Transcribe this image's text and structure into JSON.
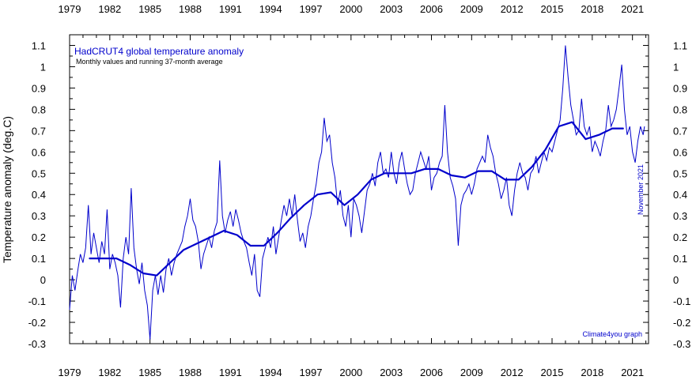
{
  "chart_data": {
    "type": "line",
    "title": "HadCRUT4 global temperature anomaly",
    "subtitle": "Monthly values and running 37-month average",
    "ylabel": "Temperature anomaly (deg.C)",
    "xlabel": "",
    "xlim": [
      1979,
      2022.2
    ],
    "ylim": [
      -0.3,
      1.15
    ],
    "x_tick_labels": [
      "1979",
      "1982",
      "1985",
      "1988",
      "1991",
      "1994",
      "1997",
      "2000",
      "2003",
      "2006",
      "2009",
      "2012",
      "2015",
      "2018",
      "2021"
    ],
    "x_tick_values": [
      1979,
      1982,
      1985,
      1988,
      1991,
      1994,
      1997,
      2000,
      2003,
      2006,
      2009,
      2012,
      2015,
      2018,
      2021
    ],
    "y_tick_labels": [
      "-0.3",
      "-0.2",
      "-0.1",
      "0",
      "0.1",
      "0.2",
      "0.3",
      "0.4",
      "0.5",
      "0.6",
      "0.7",
      "0.8",
      "0.9",
      "1",
      "1.1"
    ],
    "y_tick_values": [
      -0.3,
      -0.2,
      -0.1,
      0,
      0.1,
      0.2,
      0.3,
      0.4,
      0.5,
      0.6,
      0.7,
      0.8,
      0.9,
      1.0,
      1.1
    ],
    "date_label": "November 2021",
    "credit": "Climate4you graph",
    "line_color": "#0000cc",
    "series": [
      {
        "name": "Monthly values",
        "values": [
          [
            1979.0,
            -0.14
          ],
          [
            1979.2,
            0.02
          ],
          [
            1979.4,
            -0.05
          ],
          [
            1979.6,
            0.04
          ],
          [
            1979.8,
            0.12
          ],
          [
            1980.0,
            0.08
          ],
          [
            1980.2,
            0.15
          ],
          [
            1980.4,
            0.35
          ],
          [
            1980.6,
            0.12
          ],
          [
            1980.8,
            0.22
          ],
          [
            1981.0,
            0.15
          ],
          [
            1981.2,
            0.08
          ],
          [
            1981.4,
            0.18
          ],
          [
            1981.6,
            0.12
          ],
          [
            1981.8,
            0.33
          ],
          [
            1982.0,
            0.05
          ],
          [
            1982.2,
            0.12
          ],
          [
            1982.4,
            0.08
          ],
          [
            1982.6,
            0.02
          ],
          [
            1982.8,
            -0.13
          ],
          [
            1983.0,
            0.1
          ],
          [
            1983.2,
            0.2
          ],
          [
            1983.4,
            0.12
          ],
          [
            1983.6,
            0.43
          ],
          [
            1983.8,
            0.15
          ],
          [
            1984.0,
            0.05
          ],
          [
            1984.2,
            -0.02
          ],
          [
            1984.4,
            0.08
          ],
          [
            1984.6,
            -0.05
          ],
          [
            1984.8,
            -0.12
          ],
          [
            1985.0,
            -0.28
          ],
          [
            1985.2,
            -0.05
          ],
          [
            1985.4,
            0.02
          ],
          [
            1985.6,
            -0.07
          ],
          [
            1985.8,
            0.02
          ],
          [
            1986.0,
            -0.06
          ],
          [
            1986.2,
            0.05
          ],
          [
            1986.4,
            0.1
          ],
          [
            1986.6,
            0.02
          ],
          [
            1986.8,
            0.08
          ],
          [
            1987.0,
            0.12
          ],
          [
            1987.2,
            0.15
          ],
          [
            1987.4,
            0.18
          ],
          [
            1987.6,
            0.25
          ],
          [
            1987.8,
            0.3
          ],
          [
            1988.0,
            0.38
          ],
          [
            1988.2,
            0.28
          ],
          [
            1988.4,
            0.25
          ],
          [
            1988.6,
            0.18
          ],
          [
            1988.8,
            0.05
          ],
          [
            1989.0,
            0.12
          ],
          [
            1989.2,
            0.16
          ],
          [
            1989.4,
            0.2
          ],
          [
            1989.6,
            0.15
          ],
          [
            1989.8,
            0.23
          ],
          [
            1990.0,
            0.27
          ],
          [
            1990.2,
            0.56
          ],
          [
            1990.4,
            0.3
          ],
          [
            1990.6,
            0.22
          ],
          [
            1990.8,
            0.28
          ],
          [
            1991.0,
            0.32
          ],
          [
            1991.2,
            0.25
          ],
          [
            1991.4,
            0.33
          ],
          [
            1991.6,
            0.28
          ],
          [
            1991.8,
            0.22
          ],
          [
            1992.0,
            0.18
          ],
          [
            1992.2,
            0.15
          ],
          [
            1992.4,
            0.08
          ],
          [
            1992.6,
            0.02
          ],
          [
            1992.8,
            0.12
          ],
          [
            1993.0,
            -0.05
          ],
          [
            1993.2,
            -0.08
          ],
          [
            1993.4,
            0.1
          ],
          [
            1993.6,
            0.15
          ],
          [
            1993.8,
            0.2
          ],
          [
            1994.0,
            0.15
          ],
          [
            1994.2,
            0.25
          ],
          [
            1994.4,
            0.12
          ],
          [
            1994.6,
            0.2
          ],
          [
            1994.8,
            0.28
          ],
          [
            1995.0,
            0.35
          ],
          [
            1995.2,
            0.3
          ],
          [
            1995.4,
            0.38
          ],
          [
            1995.6,
            0.3
          ],
          [
            1995.8,
            0.4
          ],
          [
            1996.0,
            0.28
          ],
          [
            1996.2,
            0.18
          ],
          [
            1996.4,
            0.22
          ],
          [
            1996.6,
            0.15
          ],
          [
            1996.8,
            0.25
          ],
          [
            1997.0,
            0.3
          ],
          [
            1997.2,
            0.38
          ],
          [
            1997.4,
            0.45
          ],
          [
            1997.6,
            0.55
          ],
          [
            1997.8,
            0.6
          ],
          [
            1998.0,
            0.76
          ],
          [
            1998.2,
            0.65
          ],
          [
            1998.4,
            0.68
          ],
          [
            1998.6,
            0.55
          ],
          [
            1998.8,
            0.48
          ],
          [
            1999.0,
            0.35
          ],
          [
            1999.2,
            0.42
          ],
          [
            1999.4,
            0.3
          ],
          [
            1999.6,
            0.25
          ],
          [
            1999.8,
            0.35
          ],
          [
            2000.0,
            0.2
          ],
          [
            2000.2,
            0.38
          ],
          [
            2000.4,
            0.35
          ],
          [
            2000.6,
            0.3
          ],
          [
            2000.8,
            0.22
          ],
          [
            2001.0,
            0.32
          ],
          [
            2001.2,
            0.42
          ],
          [
            2001.4,
            0.45
          ],
          [
            2001.6,
            0.5
          ],
          [
            2001.8,
            0.44
          ],
          [
            2002.0,
            0.55
          ],
          [
            2002.2,
            0.6
          ],
          [
            2002.4,
            0.5
          ],
          [
            2002.6,
            0.52
          ],
          [
            2002.8,
            0.48
          ],
          [
            2003.0,
            0.6
          ],
          [
            2003.2,
            0.5
          ],
          [
            2003.4,
            0.45
          ],
          [
            2003.6,
            0.55
          ],
          [
            2003.8,
            0.6
          ],
          [
            2004.0,
            0.52
          ],
          [
            2004.2,
            0.45
          ],
          [
            2004.4,
            0.4
          ],
          [
            2004.6,
            0.42
          ],
          [
            2004.8,
            0.5
          ],
          [
            2005.0,
            0.55
          ],
          [
            2005.2,
            0.6
          ],
          [
            2005.4,
            0.56
          ],
          [
            2005.6,
            0.52
          ],
          [
            2005.8,
            0.58
          ],
          [
            2006.0,
            0.42
          ],
          [
            2006.2,
            0.48
          ],
          [
            2006.4,
            0.5
          ],
          [
            2006.6,
            0.55
          ],
          [
            2006.8,
            0.58
          ],
          [
            2007.0,
            0.82
          ],
          [
            2007.2,
            0.6
          ],
          [
            2007.4,
            0.48
          ],
          [
            2007.6,
            0.44
          ],
          [
            2007.8,
            0.38
          ],
          [
            2008.0,
            0.16
          ],
          [
            2008.2,
            0.35
          ],
          [
            2008.4,
            0.4
          ],
          [
            2008.6,
            0.42
          ],
          [
            2008.8,
            0.45
          ],
          [
            2009.0,
            0.4
          ],
          [
            2009.2,
            0.45
          ],
          [
            2009.4,
            0.52
          ],
          [
            2009.6,
            0.55
          ],
          [
            2009.8,
            0.58
          ],
          [
            2010.0,
            0.55
          ],
          [
            2010.2,
            0.68
          ],
          [
            2010.4,
            0.62
          ],
          [
            2010.6,
            0.58
          ],
          [
            2010.8,
            0.5
          ],
          [
            2011.0,
            0.45
          ],
          [
            2011.2,
            0.38
          ],
          [
            2011.4,
            0.42
          ],
          [
            2011.6,
            0.48
          ],
          [
            2011.8,
            0.35
          ],
          [
            2012.0,
            0.3
          ],
          [
            2012.2,
            0.42
          ],
          [
            2012.4,
            0.5
          ],
          [
            2012.6,
            0.55
          ],
          [
            2012.8,
            0.5
          ],
          [
            2013.0,
            0.48
          ],
          [
            2013.2,
            0.42
          ],
          [
            2013.4,
            0.5
          ],
          [
            2013.6,
            0.52
          ],
          [
            2013.8,
            0.58
          ],
          [
            2014.0,
            0.5
          ],
          [
            2014.2,
            0.55
          ],
          [
            2014.4,
            0.6
          ],
          [
            2014.6,
            0.56
          ],
          [
            2014.8,
            0.62
          ],
          [
            2015.0,
            0.6
          ],
          [
            2015.2,
            0.65
          ],
          [
            2015.4,
            0.7
          ],
          [
            2015.6,
            0.75
          ],
          [
            2015.8,
            0.9
          ],
          [
            2016.0,
            1.1
          ],
          [
            2016.2,
            0.95
          ],
          [
            2016.4,
            0.82
          ],
          [
            2016.6,
            0.75
          ],
          [
            2016.8,
            0.68
          ],
          [
            2017.0,
            0.7
          ],
          [
            2017.2,
            0.85
          ],
          [
            2017.4,
            0.72
          ],
          [
            2017.6,
            0.68
          ],
          [
            2017.8,
            0.72
          ],
          [
            2018.0,
            0.6
          ],
          [
            2018.2,
            0.65
          ],
          [
            2018.4,
            0.62
          ],
          [
            2018.6,
            0.58
          ],
          [
            2018.8,
            0.65
          ],
          [
            2019.0,
            0.7
          ],
          [
            2019.2,
            0.82
          ],
          [
            2019.4,
            0.72
          ],
          [
            2019.6,
            0.75
          ],
          [
            2019.8,
            0.8
          ],
          [
            2020.0,
            0.9
          ],
          [
            2020.2,
            1.01
          ],
          [
            2020.4,
            0.8
          ],
          [
            2020.6,
            0.68
          ],
          [
            2020.8,
            0.72
          ],
          [
            2021.0,
            0.6
          ],
          [
            2021.2,
            0.55
          ],
          [
            2021.4,
            0.65
          ],
          [
            2021.6,
            0.72
          ],
          [
            2021.8,
            0.68
          ],
          [
            2021.9,
            0.72
          ]
        ]
      },
      {
        "name": "Running 37-month average",
        "values": [
          [
            1980.5,
            0.1
          ],
          [
            1981.5,
            0.1
          ],
          [
            1982.5,
            0.1
          ],
          [
            1983.5,
            0.07
          ],
          [
            1984.5,
            0.03
          ],
          [
            1985.5,
            0.02
          ],
          [
            1986.5,
            0.08
          ],
          [
            1987.5,
            0.14
          ],
          [
            1988.5,
            0.17
          ],
          [
            1989.5,
            0.2
          ],
          [
            1990.5,
            0.23
          ],
          [
            1991.5,
            0.21
          ],
          [
            1992.5,
            0.16
          ],
          [
            1993.5,
            0.16
          ],
          [
            1994.5,
            0.22
          ],
          [
            1995.5,
            0.29
          ],
          [
            1996.5,
            0.35
          ],
          [
            1997.5,
            0.4
          ],
          [
            1998.5,
            0.41
          ],
          [
            1999.5,
            0.35
          ],
          [
            2000.5,
            0.4
          ],
          [
            2001.5,
            0.47
          ],
          [
            2002.5,
            0.5
          ],
          [
            2003.5,
            0.5
          ],
          [
            2004.5,
            0.5
          ],
          [
            2005.5,
            0.52
          ],
          [
            2006.5,
            0.52
          ],
          [
            2007.5,
            0.49
          ],
          [
            2008.5,
            0.48
          ],
          [
            2009.5,
            0.51
          ],
          [
            2010.5,
            0.51
          ],
          [
            2011.5,
            0.47
          ],
          [
            2012.5,
            0.47
          ],
          [
            2013.5,
            0.53
          ],
          [
            2014.5,
            0.61
          ],
          [
            2015.5,
            0.72
          ],
          [
            2016.5,
            0.74
          ],
          [
            2017.5,
            0.66
          ],
          [
            2018.5,
            0.68
          ],
          [
            2019.5,
            0.71
          ],
          [
            2020.3,
            0.71
          ]
        ]
      }
    ]
  }
}
